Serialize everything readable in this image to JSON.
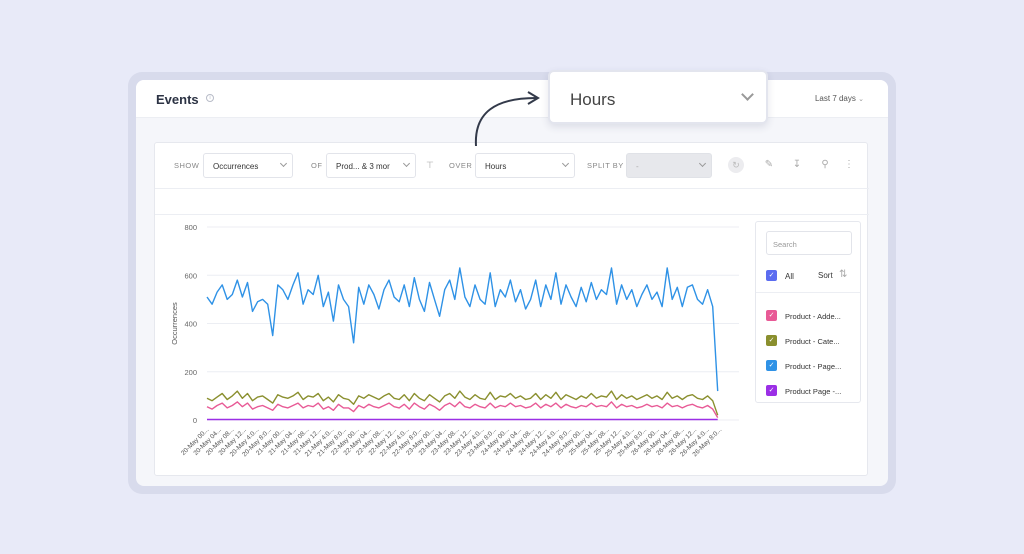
{
  "header": {
    "title": "Events",
    "date_range": "Last 7 days"
  },
  "toolbar": {
    "show_label": "SHOW",
    "show_value": "Occurrences",
    "of_label": "OF",
    "of_value": "Prod... & 3 mor",
    "over_label": "OVER",
    "over_value": "Hours",
    "split_label": "SPLIT BY",
    "split_value": "-"
  },
  "popout": {
    "value": "Hours"
  },
  "legend": {
    "search_placeholder": "Search",
    "all_label": "All",
    "sort_label": "Sort",
    "items": [
      {
        "label": "Product - Adde...",
        "color": "#e85a96"
      },
      {
        "label": "Product - Cate...",
        "color": "#8a8f2e"
      },
      {
        "label": "Product - Page...",
        "color": "#2f92e6"
      },
      {
        "label": "Product Page -...",
        "color": "#9b2fe6"
      }
    ],
    "all_color": "#5b6cf0"
  },
  "chart_data": {
    "type": "line",
    "ylabel": "Occurrences",
    "ylim": [
      0,
      800
    ],
    "yticks": [
      0,
      200,
      400,
      600,
      800
    ],
    "x_tick_labels": [
      "20-May 00...",
      "20-May 04...",
      "20-May 08...",
      "20-May 12...",
      "20-May 4:0...",
      "20-May 8:0...",
      "21-May 00...",
      "21-May 04...",
      "21-May 08...",
      "21-May 12...",
      "21-May 4:0...",
      "21-May 8:0...",
      "22-May 00...",
      "22-May 04...",
      "22-May 08...",
      "22-May 12...",
      "22-May 4:0...",
      "22-May 8:0...",
      "23-May 00...",
      "23-May 04...",
      "23-May 08...",
      "23-May 12...",
      "23-May 4:0...",
      "23-May 8:0...",
      "24-May 00...",
      "24-May 04...",
      "24-May 08...",
      "24-May 12...",
      "24-May 4:0...",
      "24-May 8:0...",
      "25-May 00...",
      "25-May 04...",
      "25-May 08...",
      "25-May 12...",
      "25-May 4:0...",
      "25-May 8:0...",
      "26-May 00...",
      "26-May 04...",
      "26-May 08...",
      "26-May 12...",
      "26-May 4:0...",
      "26-May 8:0..."
    ],
    "series": [
      {
        "name": "Product - Page...",
        "color": "#2f92e6",
        "values": [
          510,
          480,
          530,
          560,
          500,
          520,
          580,
          510,
          570,
          450,
          490,
          500,
          480,
          350,
          560,
          540,
          500,
          560,
          610,
          480,
          540,
          520,
          600,
          470,
          530,
          410,
          560,
          500,
          470,
          320,
          550,
          480,
          560,
          520,
          460,
          540,
          580,
          510,
          490,
          560,
          470,
          590,
          500,
          450,
          570,
          500,
          430,
          540,
          580,
          500,
          630,
          510,
          470,
          560,
          500,
          480,
          610,
          470,
          540,
          510,
          580,
          490,
          540,
          460,
          500,
          580,
          470,
          560,
          500,
          610,
          480,
          560,
          510,
          470,
          550,
          490,
          570,
          500,
          540,
          520,
          630,
          480,
          560,
          500,
          540,
          470,
          520,
          560,
          500,
          530,
          470,
          630,
          500,
          550,
          470,
          550,
          560,
          500,
          480,
          540,
          470,
          120
        ]
      },
      {
        "name": "Product - Cate...",
        "color": "#8a8f2e",
        "values": [
          90,
          80,
          95,
          110,
          85,
          100,
          120,
          90,
          110,
          80,
          95,
          100,
          85,
          70,
          105,
          95,
          90,
          100,
          115,
          85,
          100,
          95,
          110,
          80,
          95,
          75,
          105,
          90,
          85,
          65,
          100,
          90,
          105,
          95,
          85,
          100,
          110,
          90,
          85,
          105,
          80,
          110,
          90,
          80,
          105,
          90,
          75,
          100,
          110,
          90,
          120,
          95,
          85,
          105,
          90,
          85,
          115,
          85,
          100,
          95,
          110,
          90,
          100,
          85,
          90,
          110,
          85,
          105,
          90,
          115,
          85,
          105,
          95,
          85,
          100,
          90,
          110,
          90,
          100,
          95,
          120,
          85,
          105,
          90,
          100,
          85,
          95,
          105,
          90,
          100,
          85,
          115,
          90,
          100,
          85,
          100,
          105,
          90,
          85,
          100,
          80,
          20
        ]
      },
      {
        "name": "Product - Adde...",
        "color": "#e85a96",
        "values": [
          55,
          45,
          60,
          70,
          50,
          60,
          75,
          55,
          70,
          45,
          55,
          60,
          50,
          40,
          65,
          55,
          50,
          60,
          70,
          50,
          60,
          55,
          70,
          45,
          55,
          40,
          65,
          50,
          50,
          35,
          60,
          50,
          65,
          55,
          50,
          60,
          70,
          55,
          50,
          65,
          45,
          70,
          55,
          45,
          65,
          55,
          40,
          60,
          70,
          55,
          75,
          55,
          50,
          65,
          55,
          50,
          70,
          50,
          60,
          55,
          70,
          55,
          60,
          50,
          55,
          70,
          50,
          65,
          55,
          70,
          50,
          65,
          55,
          50,
          60,
          55,
          70,
          55,
          60,
          55,
          75,
          50,
          65,
          55,
          60,
          50,
          55,
          65,
          55,
          60,
          50,
          70,
          55,
          60,
          50,
          60,
          65,
          55,
          50,
          60,
          45,
          10
        ]
      },
      {
        "name": "Product Page -...",
        "color": "#9b2fe6",
        "values": [
          2,
          2,
          2,
          2,
          2,
          2,
          2,
          2,
          2,
          2,
          2,
          2,
          2,
          2,
          2,
          2,
          2,
          2,
          2,
          2,
          2,
          2,
          2,
          2,
          2,
          2,
          2,
          2,
          2,
          2,
          2,
          2,
          2,
          2,
          2,
          2,
          2,
          2,
          2,
          2,
          2,
          2,
          2,
          2,
          2,
          2,
          2,
          2,
          2,
          2,
          2,
          2,
          2,
          2,
          2,
          2,
          2,
          2,
          2,
          2,
          2,
          2,
          2,
          2,
          2,
          2,
          2,
          2,
          2,
          2,
          2,
          2,
          2,
          2,
          2,
          2,
          2,
          2,
          2,
          2,
          2,
          2,
          2,
          2,
          2,
          2,
          2,
          2,
          2,
          2,
          2,
          2,
          2,
          2,
          2,
          2,
          2,
          2,
          2,
          2,
          2,
          2
        ]
      }
    ]
  }
}
